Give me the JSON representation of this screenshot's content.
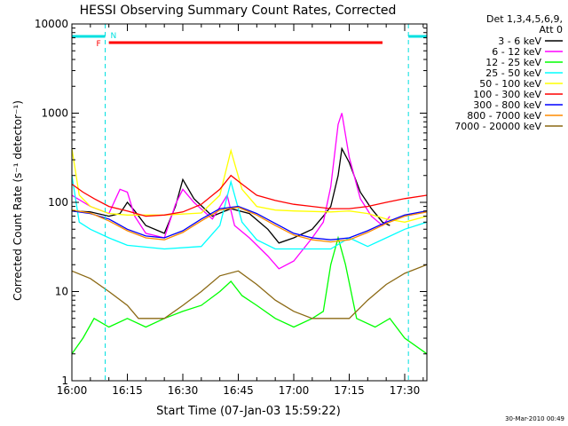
{
  "chart_data": {
    "type": "line",
    "title": "HESSI Observing Summary Count Rates, Corrected",
    "xlabel": "Start Time (07-Jan-03 15:59:22)",
    "ylabel": "Corrected Count Rate (s⁻¹ detector⁻¹)",
    "yscale": "log",
    "ylim": [
      1,
      10000
    ],
    "xlim": [
      "16:00",
      "17:36"
    ],
    "x_ticks": [
      "16:00",
      "16:15",
      "16:30",
      "16:45",
      "17:00",
      "17:15",
      "17:30"
    ],
    "y_ticks": [
      "1",
      "10",
      "100",
      "1000",
      "10000"
    ],
    "footer": "30-Mar-2010 00:49",
    "legend": {
      "header": [
        "Det 1,3,4,5,6,9,",
        "Att 0"
      ],
      "position": "right"
    },
    "flags": [
      {
        "label": "N",
        "color": "#00e0e0"
      },
      {
        "label": "F",
        "color": "#ff0000"
      }
    ],
    "series": [
      {
        "name": "3 - 6 keV",
        "color": "#000000",
        "points": [
          [
            "16:00",
            80
          ],
          [
            "16:05",
            78
          ],
          [
            "16:10",
            70
          ],
          [
            "16:13",
            75
          ],
          [
            "16:15",
            100
          ],
          [
            "16:17",
            80
          ],
          [
            "16:20",
            55
          ],
          [
            "16:25",
            45
          ],
          [
            "16:28",
            90
          ],
          [
            "16:30",
            180
          ],
          [
            "16:33",
            110
          ],
          [
            "16:38",
            70
          ],
          [
            "16:43",
            85
          ],
          [
            "16:48",
            75
          ],
          [
            "16:53",
            50
          ],
          [
            "16:56",
            35
          ],
          [
            "17:00",
            40
          ],
          [
            "17:05",
            50
          ],
          [
            "17:08",
            70
          ],
          [
            "17:10",
            90
          ],
          [
            "17:12",
            200
          ],
          [
            "17:13",
            400
          ],
          [
            "17:15",
            280
          ],
          [
            "17:18",
            130
          ],
          [
            "17:21",
            85
          ],
          [
            "17:24",
            60
          ],
          [
            "17:26",
            55
          ]
        ]
      },
      {
        "name": "6 - 12 keV",
        "color": "#ff00ff",
        "points": [
          [
            "16:00",
            120
          ],
          [
            "16:05",
            90
          ],
          [
            "16:10",
            75
          ],
          [
            "16:13",
            140
          ],
          [
            "16:15",
            130
          ],
          [
            "16:17",
            70
          ],
          [
            "16:20",
            45
          ],
          [
            "16:25",
            40
          ],
          [
            "16:28",
            95
          ],
          [
            "16:30",
            140
          ],
          [
            "16:33",
            100
          ],
          [
            "16:38",
            65
          ],
          [
            "16:42",
            120
          ],
          [
            "16:44",
            55
          ],
          [
            "16:48",
            40
          ],
          [
            "16:53",
            25
          ],
          [
            "16:56",
            18
          ],
          [
            "17:00",
            22
          ],
          [
            "17:05",
            40
          ],
          [
            "17:08",
            60
          ],
          [
            "17:10",
            150
          ],
          [
            "17:12",
            750
          ],
          [
            "17:13",
            1000
          ],
          [
            "17:15",
            320
          ],
          [
            "17:18",
            110
          ],
          [
            "17:21",
            70
          ],
          [
            "17:24",
            55
          ],
          [
            "17:26",
            70
          ]
        ]
      },
      {
        "name": "12 - 25 keV",
        "color": "#00ff00",
        "points": [
          [
            "16:00",
            2
          ],
          [
            "16:03",
            3
          ],
          [
            "16:06",
            5
          ],
          [
            "16:10",
            4
          ],
          [
            "16:15",
            5
          ],
          [
            "16:20",
            4
          ],
          [
            "16:25",
            5
          ],
          [
            "16:30",
            6
          ],
          [
            "16:35",
            7
          ],
          [
            "16:40",
            10
          ],
          [
            "16:43",
            13
          ],
          [
            "16:46",
            9
          ],
          [
            "16:50",
            7
          ],
          [
            "16:55",
            5
          ],
          [
            "17:00",
            4
          ],
          [
            "17:05",
            5
          ],
          [
            "17:08",
            6
          ],
          [
            "17:10",
            20
          ],
          [
            "17:12",
            40
          ],
          [
            "17:14",
            20
          ],
          [
            "17:17",
            5
          ],
          [
            "17:22",
            4
          ],
          [
            "17:26",
            5
          ],
          [
            "17:30",
            3
          ],
          [
            "17:36",
            2
          ]
        ]
      },
      {
        "name": "25 - 50 keV",
        "color": "#00ffff",
        "points": [
          [
            "16:00",
            200
          ],
          [
            "16:02",
            60
          ],
          [
            "16:05",
            50
          ],
          [
            "16:10",
            40
          ],
          [
            "16:15",
            33
          ],
          [
            "16:25",
            30
          ],
          [
            "16:35",
            32
          ],
          [
            "16:40",
            55
          ],
          [
            "16:43",
            170
          ],
          [
            "16:46",
            60
          ],
          [
            "16:50",
            38
          ],
          [
            "16:55",
            30
          ],
          [
            "17:00",
            30
          ],
          [
            "17:10",
            30
          ],
          [
            "17:15",
            40
          ],
          [
            "17:20",
            32
          ],
          [
            "17:25",
            40
          ],
          [
            "17:30",
            50
          ],
          [
            "17:36",
            60
          ]
        ]
      },
      {
        "name": "50 - 100 keV",
        "color": "#ffff00",
        "points": [
          [
            "16:00",
            400
          ],
          [
            "16:02",
            120
          ],
          [
            "16:05",
            90
          ],
          [
            "16:10",
            75
          ],
          [
            "16:15",
            72
          ],
          [
            "16:25",
            72
          ],
          [
            "16:35",
            76
          ],
          [
            "16:40",
            120
          ],
          [
            "16:43",
            380
          ],
          [
            "16:46",
            140
          ],
          [
            "16:50",
            90
          ],
          [
            "16:55",
            82
          ],
          [
            "17:00",
            80
          ],
          [
            "17:10",
            78
          ],
          [
            "17:15",
            80
          ],
          [
            "17:20",
            75
          ],
          [
            "17:25",
            65
          ],
          [
            "17:30",
            60
          ],
          [
            "17:36",
            70
          ]
        ]
      },
      {
        "name": "100 - 300 keV",
        "color": "#ff0000",
        "points": [
          [
            "16:00",
            160
          ],
          [
            "16:03",
            130
          ],
          [
            "16:06",
            110
          ],
          [
            "16:10",
            90
          ],
          [
            "16:15",
            80
          ],
          [
            "16:20",
            70
          ],
          [
            "16:25",
            72
          ],
          [
            "16:30",
            78
          ],
          [
            "16:35",
            95
          ],
          [
            "16:40",
            140
          ],
          [
            "16:43",
            200
          ],
          [
            "16:46",
            160
          ],
          [
            "16:50",
            120
          ],
          [
            "16:55",
            105
          ],
          [
            "17:00",
            95
          ],
          [
            "17:05",
            90
          ],
          [
            "17:10",
            85
          ],
          [
            "17:15",
            85
          ],
          [
            "17:20",
            90
          ],
          [
            "17:25",
            100
          ],
          [
            "17:30",
            110
          ],
          [
            "17:36",
            120
          ]
        ]
      },
      {
        "name": "300 - 800 keV",
        "color": "#0000ff",
        "points": [
          [
            "16:00",
            80
          ],
          [
            "16:05",
            75
          ],
          [
            "16:10",
            65
          ],
          [
            "16:15",
            50
          ],
          [
            "16:20",
            42
          ],
          [
            "16:25",
            40
          ],
          [
            "16:30",
            48
          ],
          [
            "16:35",
            65
          ],
          [
            "16:40",
            85
          ],
          [
            "16:45",
            90
          ],
          [
            "16:50",
            75
          ],
          [
            "16:55",
            58
          ],
          [
            "17:00",
            45
          ],
          [
            "17:05",
            40
          ],
          [
            "17:10",
            38
          ],
          [
            "17:15",
            40
          ],
          [
            "17:20",
            48
          ],
          [
            "17:25",
            60
          ],
          [
            "17:30",
            72
          ],
          [
            "17:36",
            80
          ]
        ]
      },
      {
        "name": "800 - 7000 keV",
        "color": "#ff8c00",
        "points": [
          [
            "16:00",
            82
          ],
          [
            "16:05",
            76
          ],
          [
            "16:10",
            62
          ],
          [
            "16:15",
            48
          ],
          [
            "16:20",
            40
          ],
          [
            "16:25",
            38
          ],
          [
            "16:30",
            46
          ],
          [
            "16:35",
            62
          ],
          [
            "16:40",
            82
          ],
          [
            "16:45",
            88
          ],
          [
            "16:50",
            72
          ],
          [
            "16:55",
            55
          ],
          [
            "17:00",
            43
          ],
          [
            "17:05",
            38
          ],
          [
            "17:10",
            36
          ],
          [
            "17:15",
            38
          ],
          [
            "17:20",
            46
          ],
          [
            "17:25",
            58
          ],
          [
            "17:30",
            70
          ],
          [
            "17:36",
            78
          ]
        ]
      },
      {
        "name": "7000 - 20000 keV",
        "color": "#8b6914",
        "points": [
          [
            "16:00",
            17
          ],
          [
            "16:05",
            14
          ],
          [
            "16:10",
            10
          ],
          [
            "16:15",
            7
          ],
          [
            "16:18",
            5
          ],
          [
            "16:25",
            5
          ],
          [
            "16:30",
            7
          ],
          [
            "16:35",
            10
          ],
          [
            "16:40",
            15
          ],
          [
            "16:45",
            17
          ],
          [
            "16:50",
            12
          ],
          [
            "16:55",
            8
          ],
          [
            "17:00",
            6
          ],
          [
            "17:05",
            5
          ],
          [
            "17:10",
            5
          ],
          [
            "17:15",
            5
          ],
          [
            "17:20",
            8
          ],
          [
            "17:25",
            12
          ],
          [
            "17:30",
            16
          ],
          [
            "17:36",
            20
          ]
        ]
      }
    ]
  }
}
